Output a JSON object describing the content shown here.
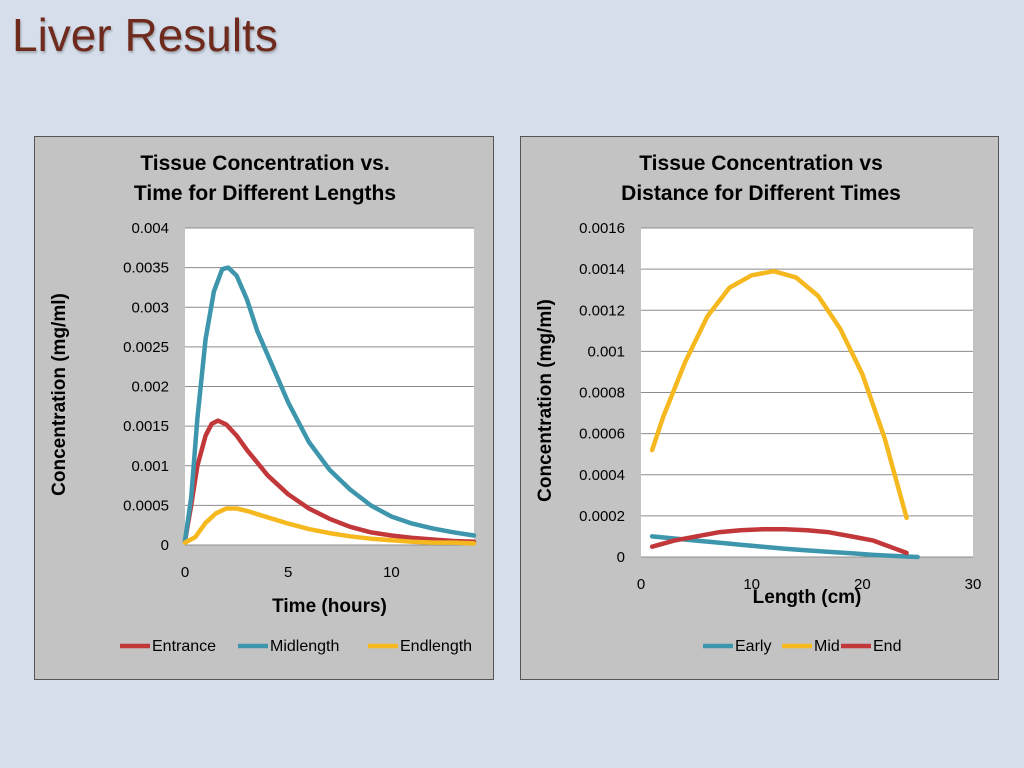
{
  "slide": {
    "title": "Liver Results"
  },
  "colors": {
    "blue": "#3e96ad",
    "red": "#c2383a",
    "yellow": "#f5b91f",
    "plot_bg": "#ffffff",
    "panel_bg": "#c3c3c3",
    "title": "#6e2a1c"
  },
  "chart_data": [
    {
      "type": "line",
      "title_lines": [
        "Tissue Concentration vs.",
        "Time for Different Lengths"
      ],
      "xlabel": "Time (hours)",
      "ylabel": "Concentration (mg/ml)",
      "xlim": [
        0,
        14
      ],
      "ylim": [
        0,
        0.004
      ],
      "xticks": [
        0,
        5,
        10
      ],
      "xtick_labels": [
        "0",
        "5",
        "10"
      ],
      "yticks": [
        0,
        0.0005,
        0.001,
        0.0015,
        0.002,
        0.0025,
        0.003,
        0.0035,
        0.004
      ],
      "ytick_labels": [
        "0",
        "0.0005",
        "0.001",
        "0.0015",
        "0.002",
        "0.0025",
        "0.003",
        "0.0035",
        "0.004"
      ],
      "grid": true,
      "legend_position": "bottom",
      "series": [
        {
          "name": "Entrance",
          "color": "#c2383a",
          "x": [
            0,
            0.3,
            0.6,
            1.0,
            1.3,
            1.6,
            2.0,
            2.5,
            3.0,
            4.0,
            5.0,
            6.0,
            7.0,
            8.0,
            9.0,
            10.0,
            11.0,
            12.0,
            13.0,
            14.0
          ],
          "y": [
            5e-05,
            0.0005,
            0.001,
            0.00138,
            0.00153,
            0.00157,
            0.00152,
            0.00138,
            0.0012,
            0.00088,
            0.00064,
            0.00046,
            0.00033,
            0.00023,
            0.00016,
            0.00012,
            9e-05,
            7e-05,
            5e-05,
            4e-05
          ]
        },
        {
          "name": "Midlength",
          "color": "#3e96ad",
          "x": [
            0,
            0.3,
            0.6,
            1.0,
            1.4,
            1.8,
            2.1,
            2.5,
            3.0,
            3.5,
            4.0,
            5.0,
            6.0,
            7.0,
            8.0,
            9.0,
            10.0,
            11.0,
            12.0,
            13.0,
            14.0
          ],
          "y": [
            5e-05,
            0.0006,
            0.0016,
            0.0026,
            0.0032,
            0.00348,
            0.0035,
            0.0034,
            0.0031,
            0.0027,
            0.0024,
            0.0018,
            0.0013,
            0.00095,
            0.0007,
            0.0005,
            0.00036,
            0.00027,
            0.00021,
            0.00016,
            0.00012
          ]
        },
        {
          "name": "Endlength",
          "color": "#f5b91f",
          "x": [
            0,
            0.5,
            1.0,
            1.5,
            2.0,
            2.5,
            3.0,
            4.0,
            5.0,
            6.0,
            7.0,
            8.0,
            9.0,
            10.0,
            11.0,
            12.0,
            13.0,
            14.0
          ],
          "y": [
            3e-05,
            0.0001,
            0.00028,
            0.0004,
            0.00046,
            0.00046,
            0.00043,
            0.00035,
            0.00027,
            0.0002,
            0.00015,
            0.00011,
            8e-05,
            6e-05,
            4e-05,
            3e-05,
            3e-05,
            2e-05
          ]
        }
      ]
    },
    {
      "type": "line",
      "title_lines": [
        "Tissue Concentration vs",
        "Distance for Different Times"
      ],
      "xlabel": "Length (cm)",
      "ylabel": "Concentration (mg/ml)",
      "xlim": [
        0,
        30
      ],
      "ylim": [
        0,
        0.0016
      ],
      "xticks": [
        0,
        10,
        20,
        30
      ],
      "xtick_labels": [
        "0",
        "10",
        "20",
        "30"
      ],
      "yticks": [
        0,
        0.0002,
        0.0004,
        0.0006,
        0.0008,
        0.001,
        0.0012,
        0.0014,
        0.0016
      ],
      "ytick_labels": [
        "0",
        "0.0002",
        "0.0004",
        "0.0006",
        "0.0008",
        "0.001",
        "0.0012",
        "0.0014",
        "0.0016"
      ],
      "grid": true,
      "legend_position": "bottom",
      "series": [
        {
          "name": "Early",
          "color": "#3e96ad",
          "x": [
            1,
            3,
            5,
            7,
            9,
            11,
            13,
            15,
            17,
            19,
            21,
            23,
            25
          ],
          "y": [
            0.0001,
            9e-05,
            8e-05,
            7e-05,
            6e-05,
            5e-05,
            4e-05,
            3.2e-05,
            2.5e-05,
            1.8e-05,
            1e-05,
            5e-06,
            0.0
          ]
        },
        {
          "name": "Mid",
          "color": "#f5b91f",
          "x": [
            1,
            2,
            4,
            6,
            8,
            10,
            12,
            14,
            16,
            18,
            20,
            22,
            24
          ],
          "y": [
            0.00052,
            0.00068,
            0.00095,
            0.00117,
            0.00131,
            0.00137,
            0.00139,
            0.00136,
            0.00127,
            0.00111,
            0.00089,
            0.00058,
            0.00019
          ]
        },
        {
          "name": "End",
          "color": "#c2383a",
          "x": [
            1,
            3,
            5,
            7,
            9,
            11,
            13,
            15,
            17,
            19,
            21,
            23,
            24
          ],
          "y": [
            5e-05,
            8e-05,
            0.0001,
            0.00012,
            0.00013,
            0.000135,
            0.000135,
            0.00013,
            0.00012,
            0.0001,
            8e-05,
            4e-05,
            2e-05
          ]
        }
      ]
    }
  ]
}
